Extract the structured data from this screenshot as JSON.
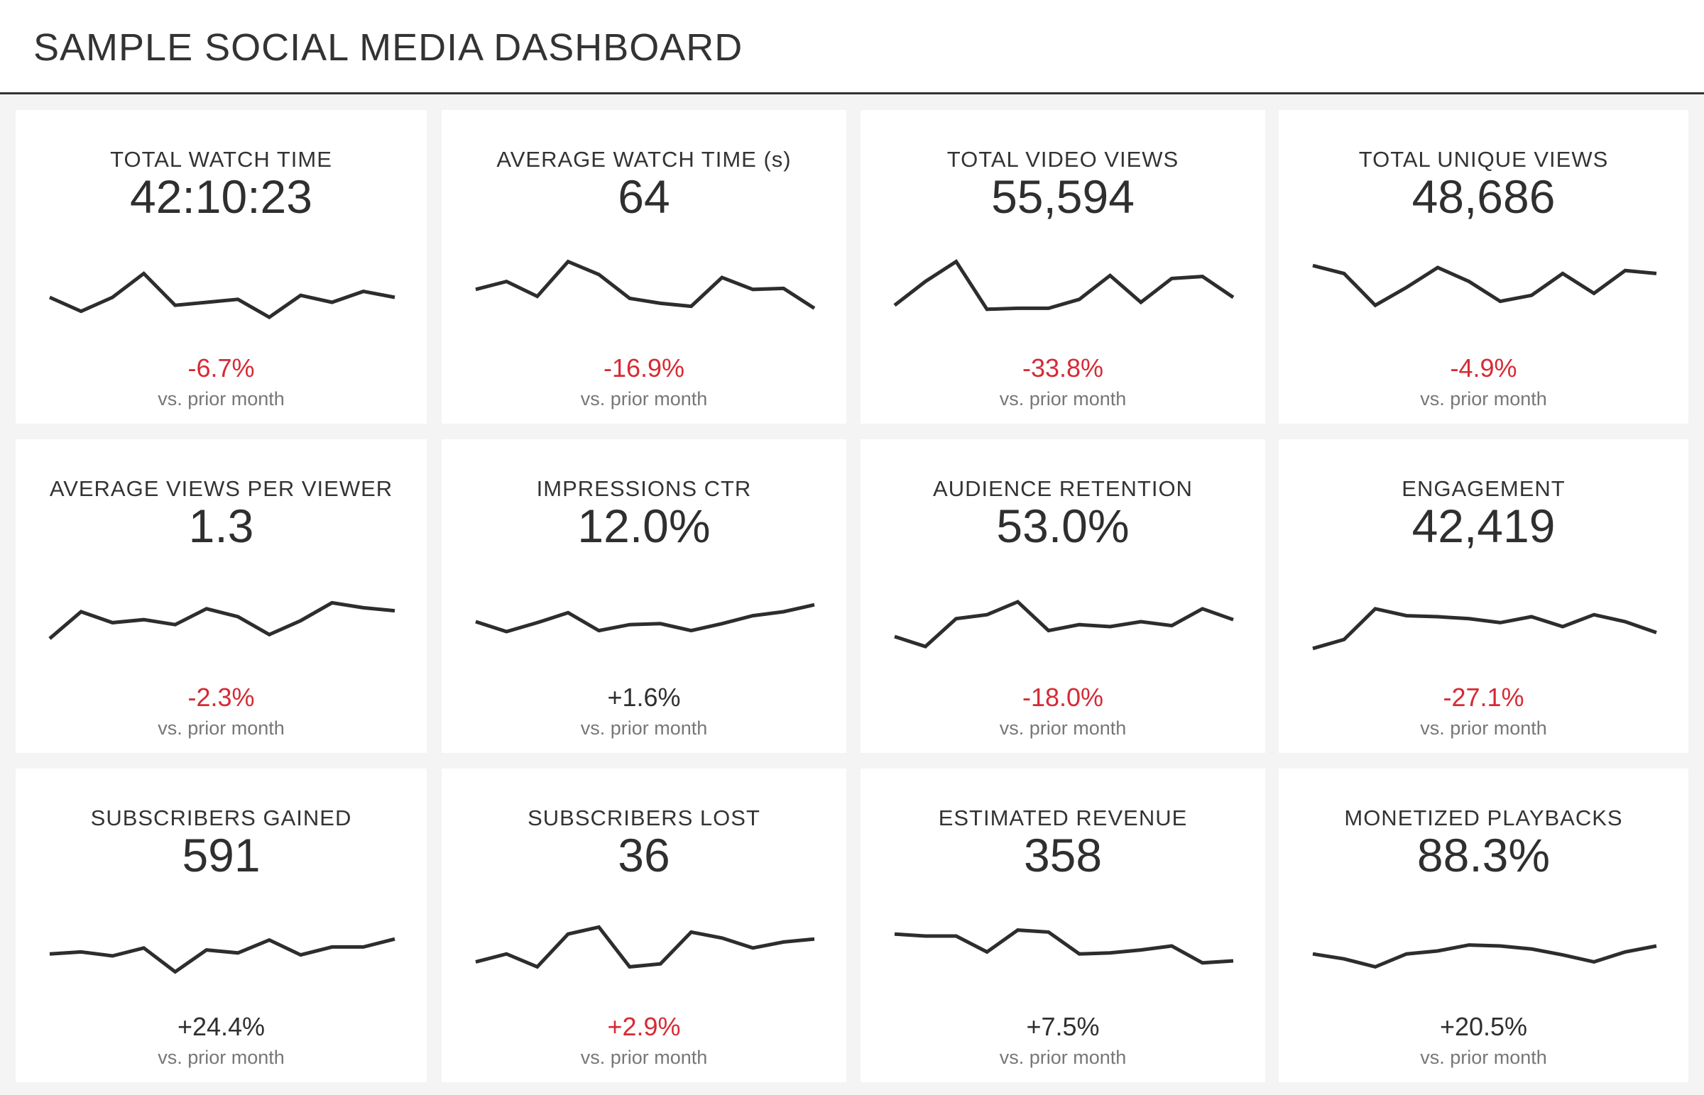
{
  "header": {
    "title": "SAMPLE SOCIAL MEDIA DASHBOARD"
  },
  "colors": {
    "negative": "#d62a34",
    "neutral": "#2f2f2f",
    "line": "#2d2d2d",
    "background": "#f4f4f4",
    "card": "#ffffff"
  },
  "comparison_label": "vs. prior month",
  "chart_data": [
    {
      "type": "line",
      "title": "TOTAL WATCH TIME",
      "value": "42:10:23",
      "change": "-6.7%",
      "trend": "negative",
      "values": [
        40,
        26,
        40,
        64,
        32,
        35,
        38,
        20,
        42,
        35,
        46,
        40
      ]
    },
    {
      "type": "line",
      "title": "AVERAGE WATCH TIME (s)",
      "value": "64",
      "change": "-16.9%",
      "trend": "negative",
      "values": [
        48,
        56,
        41,
        76,
        63,
        39,
        34,
        31,
        60,
        48,
        49,
        29
      ]
    },
    {
      "type": "line",
      "title": "TOTAL VIDEO VIEWS",
      "value": "55,594",
      "change": "-33.8%",
      "trend": "negative",
      "values": [
        32,
        56,
        76,
        28,
        29,
        29,
        38,
        62,
        35,
        59,
        61,
        40
      ]
    },
    {
      "type": "line",
      "title": "TOTAL UNIQUE VIEWS",
      "value": "48,686",
      "change": "-4.9%",
      "trend": "negative",
      "values": [
        72,
        64,
        32,
        50,
        70,
        56,
        36,
        42,
        64,
        44,
        67,
        64
      ]
    },
    {
      "type": "line",
      "title": "AVERAGE VIEWS PER VIEWER",
      "value": "1.3",
      "change": "-2.3%",
      "trend": "negative",
      "values": [
        28,
        55,
        44,
        47,
        42,
        58,
        50,
        32,
        46,
        64,
        59,
        56
      ]
    },
    {
      "type": "line",
      "title": "IMPRESSIONS CTR",
      "value": "12.0%",
      "change": "+1.6%",
      "trend": "neutral",
      "values": [
        45,
        35,
        44,
        54,
        36,
        42,
        43,
        36,
        43,
        51,
        55,
        62
      ]
    },
    {
      "type": "line",
      "title": "AUDIENCE RETENTION",
      "value": "53.0%",
      "change": "-18.0%",
      "trend": "negative",
      "values": [
        30,
        20,
        48,
        52,
        65,
        36,
        42,
        40,
        45,
        41,
        58,
        47
      ]
    },
    {
      "type": "line",
      "title": "ENGAGEMENT",
      "value": "42,419",
      "change": "-27.1%",
      "trend": "negative",
      "values": [
        18,
        27,
        58,
        51,
        50,
        48,
        44,
        50,
        40,
        52,
        45,
        34
      ]
    },
    {
      "type": "line",
      "title": "SUBSCRIBERS GAINED",
      "value": "591",
      "change": "+24.4%",
      "trend": "neutral",
      "values": [
        42,
        44,
        40,
        48,
        24,
        46,
        43,
        56,
        41,
        49,
        49,
        57
      ]
    },
    {
      "type": "line",
      "title": "SUBSCRIBERS LOST",
      "value": "36",
      "change": "+2.9%",
      "trend": "negative",
      "values": [
        34,
        42,
        29,
        62,
        69,
        29,
        32,
        64,
        58,
        48,
        54,
        57
      ]
    },
    {
      "type": "line",
      "title": "ESTIMATED REVENUE",
      "value": "358",
      "change": "+7.5%",
      "trend": "neutral",
      "values": [
        62,
        60,
        60,
        44,
        66,
        64,
        42,
        43,
        46,
        50,
        33,
        35
      ]
    },
    {
      "type": "line",
      "title": "MONETIZED PLAYBACKS",
      "value": "88.3%",
      "change": "+20.5%",
      "trend": "neutral",
      "values": [
        42,
        37,
        29,
        42,
        45,
        51,
        50,
        47,
        41,
        34,
        44,
        50
      ]
    }
  ]
}
